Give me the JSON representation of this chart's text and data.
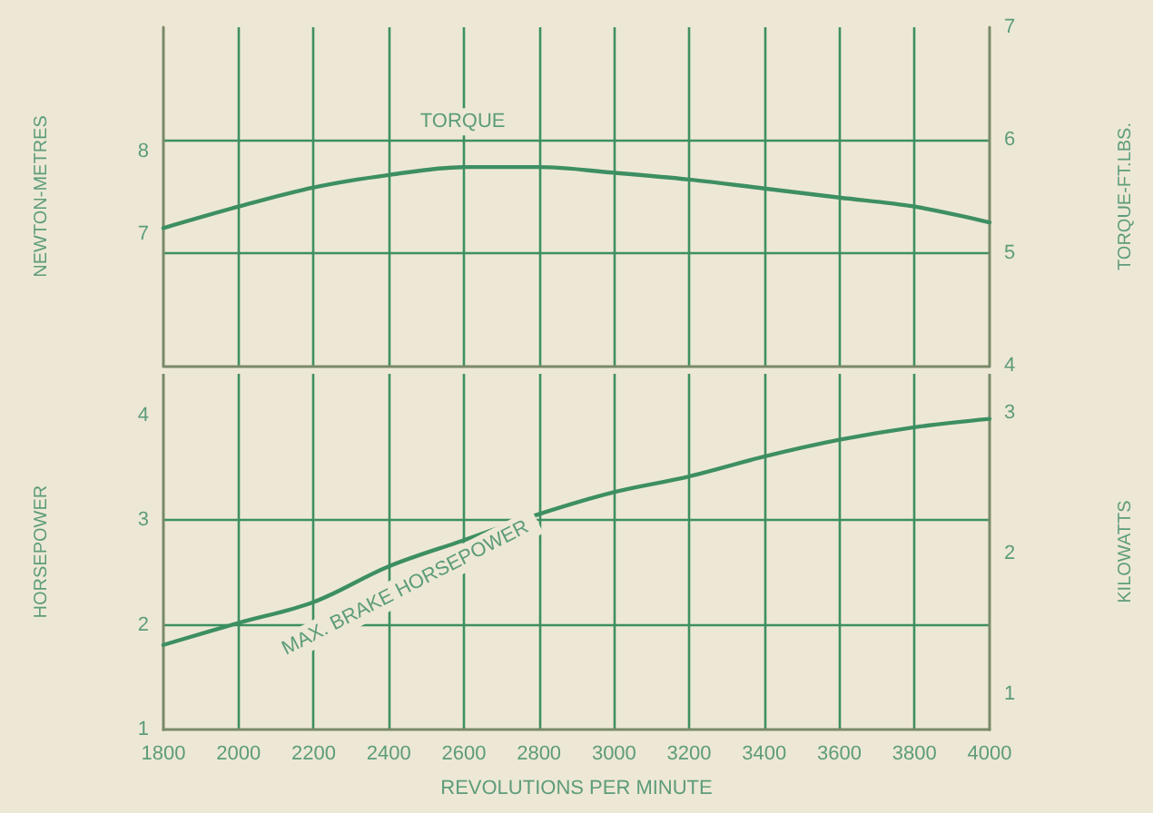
{
  "chart_data": [
    {
      "type": "line",
      "ylabel": "NEWTON-METRES",
      "y2label": "TORQUE-FT.LBS.",
      "x": [
        1800,
        2000,
        2200,
        2400,
        2600,
        2800,
        3000,
        3200,
        3400,
        3600,
        3800,
        4000
      ],
      "series": [
        {
          "name": "TORQUE",
          "color": "#3d8f62",
          "axis": "y2",
          "values": [
            5.22,
            5.41,
            5.58,
            5.69,
            5.76,
            5.76,
            5.71,
            5.65,
            5.57,
            5.49,
            5.41,
            5.27
          ]
        }
      ],
      "xlim": [
        1800,
        4000
      ],
      "xticks": [
        1800,
        2000,
        2200,
        2400,
        2600,
        2800,
        3000,
        3200,
        3400,
        3600,
        3800,
        4000
      ],
      "ylim": [
        5.42,
        9.49
      ],
      "yticks": [
        7,
        8
      ],
      "y2lim": [
        4,
        7
      ],
      "y2ticks": [
        4,
        5,
        6,
        7
      ],
      "grid": true,
      "tick_labels": "y",
      "marker": "none",
      "line_style": "solid"
    },
    {
      "type": "line",
      "xlabel": "REVOLUTIONS PER MINUTE",
      "ylabel": "HORSEPOWER",
      "y2label": "KILOWATTS",
      "x": [
        1800,
        2000,
        2200,
        2400,
        2600,
        2800,
        3000,
        3200,
        3400,
        3600,
        3800,
        4000
      ],
      "series": [
        {
          "name": "MAX. BRAKE HORSEPOWER",
          "color": "#3d8f62",
          "values": [
            1.81,
            2.02,
            2.22,
            2.56,
            2.81,
            3.06,
            3.27,
            3.42,
            3.61,
            3.77,
            3.89,
            3.97
          ]
        }
      ],
      "xlim": [
        1800,
        4000
      ],
      "xticks": [
        1800,
        2000,
        2200,
        2400,
        2600,
        2800,
        3000,
        3200,
        3400,
        3600,
        3800,
        4000
      ],
      "ylim": [
        1,
        4.4
      ],
      "yticks": [
        1,
        2,
        3,
        4
      ],
      "y2lim": [
        0.746,
        3.28
      ],
      "y2ticks": [
        1,
        2,
        3
      ],
      "grid": true,
      "marker": "none",
      "line_style": "solid"
    }
  ]
}
